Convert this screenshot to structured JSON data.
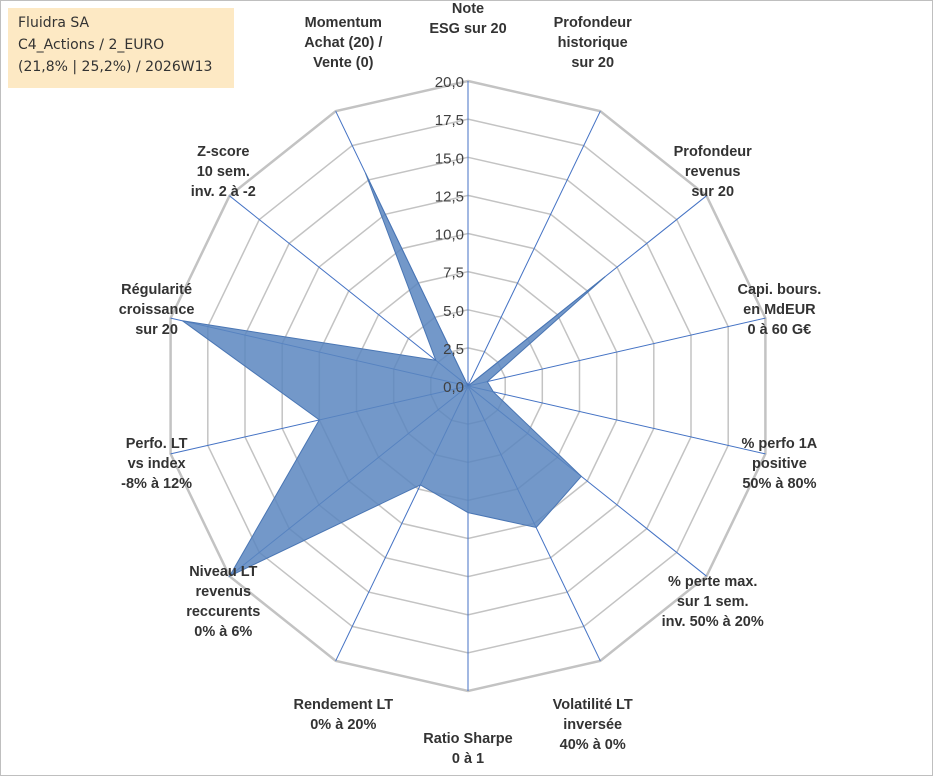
{
  "info": {
    "company": "Fluidra SA",
    "line2": "C4_Actions / 2_EURO",
    "line3": "(21,8% | 25,2%) / 2026W13"
  },
  "colors": {
    "fill": "#5a86c0",
    "fill_stroke": "#4a76b4",
    "grid": "#c3c3c3",
    "spoke": "#4472c4",
    "text": "#333333"
  },
  "chart_data": {
    "type": "radar",
    "title": "",
    "range": [
      0,
      20
    ],
    "tick_step": 2.5,
    "tick_labels": [
      "0,0",
      "2,5",
      "5,0",
      "7,5",
      "10,0",
      "12,5",
      "15,0",
      "17,5",
      "20,0"
    ],
    "axes": [
      {
        "label": [
          "Note",
          "ESG sur 20"
        ],
        "value": 0
      },
      {
        "label": [
          "Profondeur",
          "historique",
          "sur 20"
        ],
        "value": 0
      },
      {
        "label": [
          "Profondeur",
          "revenus",
          "sur 20"
        ],
        "value": 11.5
      },
      {
        "label": [
          "Capi. bours.",
          "en MdEUR",
          "0 à 60 G€"
        ],
        "value": 1.3
      },
      {
        "label": [
          "% perfo 1A",
          "positive",
          "50% à 80%"
        ],
        "value": 1.7
      },
      {
        "label": [
          "% perte max.",
          "sur 1 sem.",
          "inv. 50% à 20%"
        ],
        "value": 9.5
      },
      {
        "label": [
          "Volatilité LT",
          "inversée",
          "40% à 0%"
        ],
        "value": 10.3
      },
      {
        "label": [
          "Ratio Sharpe",
          "0 à 1"
        ],
        "value": 8.3
      },
      {
        "label": [
          "Rendement LT",
          "0% à 20%"
        ],
        "value": 7.2
      },
      {
        "label": [
          "Niveau LT",
          "revenus",
          "reccurents",
          "0% à 6%"
        ],
        "value": 20
      },
      {
        "label": [
          "Perfo. LT",
          "vs index",
          "-8% à 12%"
        ],
        "value": 10
      },
      {
        "label": [
          "Régularité",
          "croissance",
          "sur 20"
        ],
        "value": 19.2
      },
      {
        "label": [
          "Z-score",
          "10 sem.",
          "inv. 2 à -2"
        ],
        "value": 2.7
      },
      {
        "label": [
          "Momentum",
          "Achat (20) /",
          "Vente (0)"
        ],
        "value": 15.5
      }
    ],
    "series": [
      {
        "name": "Fluidra SA",
        "values": [
          0,
          0,
          11.5,
          1.3,
          1.7,
          9.5,
          10.3,
          8.3,
          7.2,
          20,
          10,
          19.2,
          2.7,
          15.5
        ]
      }
    ]
  }
}
